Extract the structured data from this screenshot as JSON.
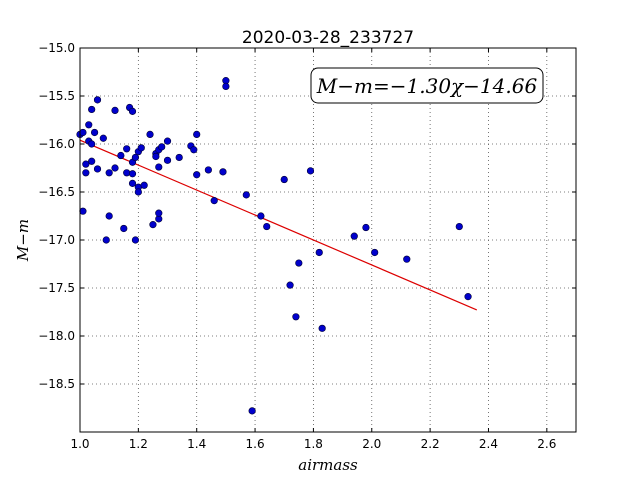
{
  "chart_data": {
    "type": "scatter",
    "title": "2020-03-28_233727",
    "xlabel": "airmass",
    "ylabel": "M−m",
    "xlim": [
      1.0,
      2.7
    ],
    "ylim": [
      -15.0,
      -19.0
    ],
    "y_inverted": true,
    "grid": true,
    "x_ticks": [
      "1.0",
      "1.2",
      "1.4",
      "1.6",
      "1.8",
      "2.0",
      "2.2",
      "2.4",
      "2.6"
    ],
    "x_tick_values": [
      1.0,
      1.2,
      1.4,
      1.6,
      1.8,
      2.0,
      2.2,
      2.4,
      2.6
    ],
    "y_ticks": [
      "−15.0",
      "−15.5",
      "−16.0",
      "−16.5",
      "−17.0",
      "−17.5",
      "−18.0",
      "−18.5"
    ],
    "y_tick_values": [
      -15.0,
      -15.5,
      -16.0,
      -16.5,
      -17.0,
      -17.5,
      -18.0,
      -18.5
    ],
    "annotation": "M−m=−1.30χ−14.66",
    "fit": {
      "slope": -1.3,
      "intercept": -14.66,
      "x_range": [
        1.0,
        2.36
      ],
      "color": "#dd0000"
    },
    "point_color": "#0000cc",
    "points": [
      [
        1.0,
        -15.9
      ],
      [
        1.01,
        -15.88
      ],
      [
        1.02,
        -16.21
      ],
      [
        1.02,
        -16.3
      ],
      [
        1.01,
        -16.7
      ],
      [
        1.03,
        -15.8
      ],
      [
        1.03,
        -15.97
      ],
      [
        1.04,
        -16.0
      ],
      [
        1.04,
        -16.18
      ],
      [
        1.04,
        -15.64
      ],
      [
        1.05,
        -15.88
      ],
      [
        1.06,
        -15.54
      ],
      [
        1.06,
        -16.26
      ],
      [
        1.08,
        -15.94
      ],
      [
        1.09,
        -17.0
      ],
      [
        1.1,
        -16.75
      ],
      [
        1.1,
        -16.3
      ],
      [
        1.12,
        -16.25
      ],
      [
        1.12,
        -15.65
      ],
      [
        1.14,
        -16.12
      ],
      [
        1.15,
        -16.88
      ],
      [
        1.16,
        -16.3
      ],
      [
        1.16,
        -16.05
      ],
      [
        1.17,
        -15.62
      ],
      [
        1.18,
        -15.66
      ],
      [
        1.18,
        -16.19
      ],
      [
        1.18,
        -16.31
      ],
      [
        1.19,
        -16.14
      ],
      [
        1.18,
        -16.41
      ],
      [
        1.19,
        -17.0
      ],
      [
        1.2,
        -16.08
      ],
      [
        1.2,
        -16.45
      ],
      [
        1.2,
        -16.5
      ],
      [
        1.21,
        -16.04
      ],
      [
        1.22,
        -16.43
      ],
      [
        1.24,
        -15.9
      ],
      [
        1.25,
        -16.84
      ],
      [
        1.26,
        -16.1
      ],
      [
        1.26,
        -16.13
      ],
      [
        1.27,
        -16.06
      ],
      [
        1.27,
        -16.24
      ],
      [
        1.27,
        -16.78
      ],
      [
        1.27,
        -16.72
      ],
      [
        1.28,
        -16.03
      ],
      [
        1.3,
        -15.97
      ],
      [
        1.3,
        -16.17
      ],
      [
        1.34,
        -16.14
      ],
      [
        1.38,
        -16.02
      ],
      [
        1.39,
        -16.06
      ],
      [
        1.4,
        -15.9
      ],
      [
        1.4,
        -16.32
      ],
      [
        1.44,
        -16.27
      ],
      [
        1.46,
        -16.59
      ],
      [
        1.49,
        -16.29
      ],
      [
        1.5,
        -15.34
      ],
      [
        1.5,
        -15.4
      ],
      [
        1.57,
        -16.53
      ],
      [
        1.59,
        -18.78
      ],
      [
        1.62,
        -16.75
      ],
      [
        1.64,
        -16.86
      ],
      [
        1.7,
        -16.37
      ],
      [
        1.72,
        -17.47
      ],
      [
        1.74,
        -17.8
      ],
      [
        1.75,
        -17.24
      ],
      [
        1.79,
        -16.28
      ],
      [
        1.82,
        -17.13
      ],
      [
        1.83,
        -17.92
      ],
      [
        1.94,
        -16.96
      ],
      [
        1.98,
        -16.87
      ],
      [
        2.01,
        -17.13
      ],
      [
        2.12,
        -17.2
      ],
      [
        2.3,
        -16.86
      ],
      [
        2.33,
        -17.59
      ]
    ]
  }
}
